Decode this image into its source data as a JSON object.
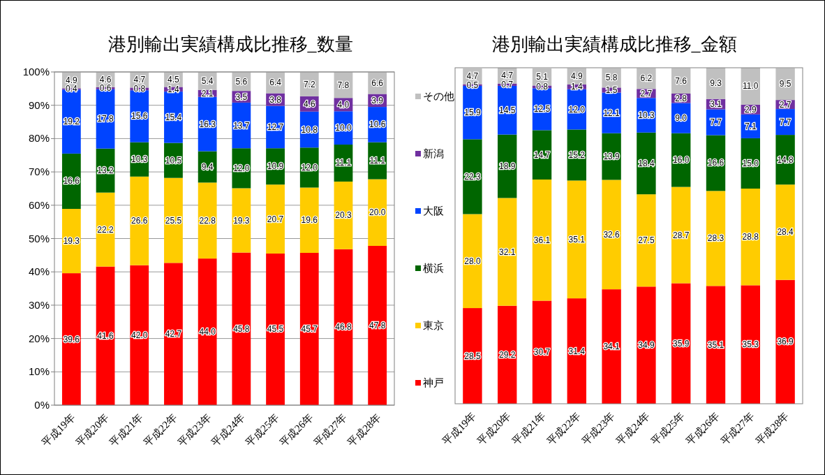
{
  "chart_data": [
    {
      "type": "bar",
      "stacked": true,
      "title": "港別輸出実績構成比推移_数量",
      "categories": [
        "平成19年",
        "平成20年",
        "平成21年",
        "平成22年",
        "平成23年",
        "平成24年",
        "平成25年",
        "平成26年",
        "平成27年",
        "平成28年"
      ],
      "ylim": [
        0,
        100
      ],
      "yticks": [
        {
          "value": 0,
          "label": "0%"
        },
        {
          "value": 10,
          "label": "10%"
        },
        {
          "value": 20,
          "label": "20%"
        },
        {
          "value": 30,
          "label": "30%"
        },
        {
          "value": 40,
          "label": "40%"
        },
        {
          "value": 50,
          "label": "50%"
        },
        {
          "value": 60,
          "label": "60%"
        },
        {
          "value": 70,
          "label": "70%"
        },
        {
          "value": 80,
          "label": "80%"
        },
        {
          "value": 90,
          "label": "90%"
        },
        {
          "value": 100,
          "label": "100%"
        }
      ],
      "grid": "y",
      "legend": "right",
      "series": [
        {
          "name": "神戸",
          "color": "#ff0000",
          "values": [
            39.6,
            41.6,
            42.0,
            42.7,
            44.0,
            45.8,
            45.5,
            45.7,
            46.8,
            47.8
          ],
          "value_labels": [
            "39.6",
            "41.6",
            "42.0",
            "42.7",
            "44.0",
            "45.8",
            "45.5",
            "45.7",
            "46.8",
            "47.8"
          ]
        },
        {
          "name": "東京",
          "color": "#ffcc00",
          "values": [
            19.3,
            22.2,
            26.6,
            25.5,
            22.8,
            19.3,
            20.7,
            19.6,
            20.3,
            20.0
          ],
          "value_labels": [
            "19.3",
            "22.2",
            "26.6",
            "25.5",
            "22.8",
            "19.3",
            "20.7",
            "19.6",
            "20.3",
            "20.0"
          ]
        },
        {
          "name": "横浜",
          "color": "#006600",
          "values": [
            16.6,
            13.2,
            10.3,
            10.5,
            9.4,
            12.0,
            10.9,
            12.0,
            11.1,
            11.1
          ],
          "value_labels": [
            "16.6",
            "13.2",
            "10.3",
            "10.5",
            "9.4",
            "12.0",
            "10.9",
            "12.0",
            "11.1",
            "11.1"
          ]
        },
        {
          "name": "大阪",
          "color": "#0044ff",
          "values": [
            19.2,
            17.8,
            15.6,
            15.4,
            16.3,
            13.7,
            12.7,
            10.8,
            10.0,
            10.6
          ],
          "value_labels": [
            "19.2",
            "17.8",
            "15.6",
            "15.4",
            "16.3",
            "13.7",
            "12.7",
            "10.8",
            "10.0",
            "10.6"
          ]
        },
        {
          "name": "新潟",
          "color": "#7030a0",
          "values": [
            0.4,
            0.6,
            0.8,
            1.4,
            2.1,
            3.5,
            3.8,
            4.6,
            4.0,
            3.9
          ],
          "value_labels": [
            "0.4",
            "0.6",
            "0.8",
            "1.4",
            "2.1",
            "3.5",
            "3.8",
            "4.6",
            "4.0",
            "3.9"
          ]
        },
        {
          "name": "その他",
          "color": "#c0c0c0",
          "values": [
            4.9,
            4.6,
            4.7,
            4.5,
            5.4,
            5.6,
            6.4,
            7.2,
            7.8,
            6.6
          ],
          "value_labels": [
            "4.9",
            "4.6",
            "4.7",
            "4.5",
            "5.4",
            "5.6",
            "6.4",
            "7.2",
            "7.8",
            "6.6"
          ]
        }
      ]
    },
    {
      "type": "bar",
      "stacked": true,
      "title": "港別輸出実績構成比推移_金額",
      "categories": [
        "平成19年",
        "平成20年",
        "平成21年",
        "平成22年",
        "平成23年",
        "平成24年",
        "平成25年",
        "平成26年",
        "平成27年",
        "平成28年"
      ],
      "tick_labels": "x",
      "series": [
        {
          "color": "#ff0000",
          "values": [
            28.5,
            29.2,
            30.7,
            31.4,
            34.1,
            34.9,
            35.9,
            35.1,
            35.3,
            36.9
          ],
          "value_labels": [
            "28.5",
            "29.2",
            "30.7",
            "31.4",
            "34.1",
            "34.9",
            "35.9",
            "35.1",
            "35.3",
            "36.9"
          ]
        },
        {
          "color": "#ffcc00",
          "values": [
            28.0,
            32.1,
            36.1,
            35.1,
            32.6,
            27.5,
            28.7,
            28.3,
            28.8,
            28.4
          ],
          "value_labels": [
            "28.0",
            "32.1",
            "36.1",
            "35.1",
            "32.6",
            "27.5",
            "28.7",
            "28.3",
            "28.8",
            "28.4"
          ]
        },
        {
          "color": "#006600",
          "values": [
            22.3,
            18.9,
            14.7,
            15.2,
            13.9,
            18.4,
            16.0,
            16.6,
            15.0,
            14.8
          ],
          "value_labels": [
            "22.3",
            "18.9",
            "14.7",
            "15.2",
            "13.9",
            "18.4",
            "16.0",
            "16.6",
            "15.0",
            "14.8"
          ]
        },
        {
          "color": "#0044ff",
          "values": [
            15.9,
            14.5,
            12.5,
            12.0,
            12.1,
            10.3,
            9.0,
            7.7,
            7.1,
            7.7
          ],
          "value_labels": [
            "15.9",
            "14.5",
            "12.5",
            "12.0",
            "12.1",
            "10.3",
            "9.0",
            "7.7",
            "7.1",
            "7.7"
          ]
        },
        {
          "color": "#7030a0",
          "values": [
            0.5,
            0.7,
            0.8,
            1.4,
            1.5,
            2.7,
            2.8,
            3.1,
            2.9,
            2.7
          ],
          "value_labels": [
            "0.5",
            "0.7",
            "0.8",
            "1.4",
            "1.5",
            "2.7",
            "2.8",
            "3.1",
            "2.9",
            "2.7"
          ]
        },
        {
          "color": "#c0c0c0",
          "values": [
            4.7,
            4.7,
            5.1,
            4.9,
            5.8,
            6.2,
            7.6,
            9.3,
            11.0,
            9.5
          ],
          "value_labels": [
            "4.7",
            "4.7",
            "5.1",
            "4.9",
            "5.8",
            "6.2",
            "7.6",
            "9.3",
            "11.0",
            "9.5"
          ]
        }
      ]
    }
  ]
}
